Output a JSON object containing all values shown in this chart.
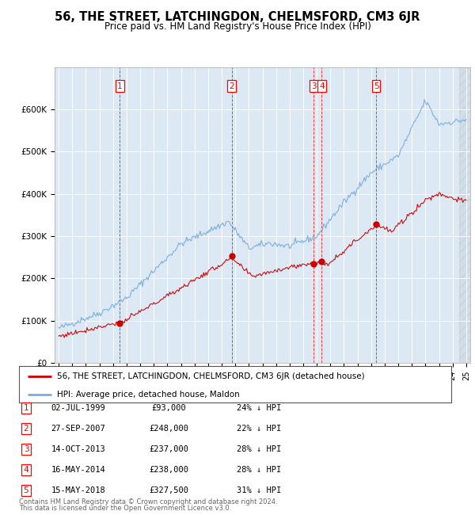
{
  "title": "56, THE STREET, LATCHINGDON, CHELMSFORD, CM3 6JR",
  "subtitle": "Price paid vs. HM Land Registry's House Price Index (HPI)",
  "transactions": [
    {
      "num": 1,
      "date": "02-JUL-1999",
      "date_float": 1999.5,
      "price": 93000,
      "pct": "24%"
    },
    {
      "num": 2,
      "date": "27-SEP-2007",
      "date_float": 2007.73,
      "price": 248000,
      "pct": "22%"
    },
    {
      "num": 3,
      "date": "14-OCT-2013",
      "date_float": 2013.78,
      "price": 237000,
      "pct": "28%"
    },
    {
      "num": 4,
      "date": "16-MAY-2014",
      "date_float": 2014.37,
      "price": 238000,
      "pct": "28%"
    },
    {
      "num": 5,
      "date": "15-MAY-2018",
      "date_float": 2018.37,
      "price": 327500,
      "pct": "31%"
    }
  ],
  "legend_property": "56, THE STREET, LATCHINGDON, CHELMSFORD, CM3 6JR (detached house)",
  "legend_hpi": "HPI: Average price, detached house, Maldon",
  "footer1": "Contains HM Land Registry data © Crown copyright and database right 2024.",
  "footer2": "This data is licensed under the Open Government Licence v3.0.",
  "property_color": "#cc0000",
  "hpi_color": "#7aabdc",
  "bg_color": "#dce9f5",
  "ylim": [
    0,
    700000
  ],
  "xlim_start": 1994.7,
  "xlim_end": 2025.3
}
